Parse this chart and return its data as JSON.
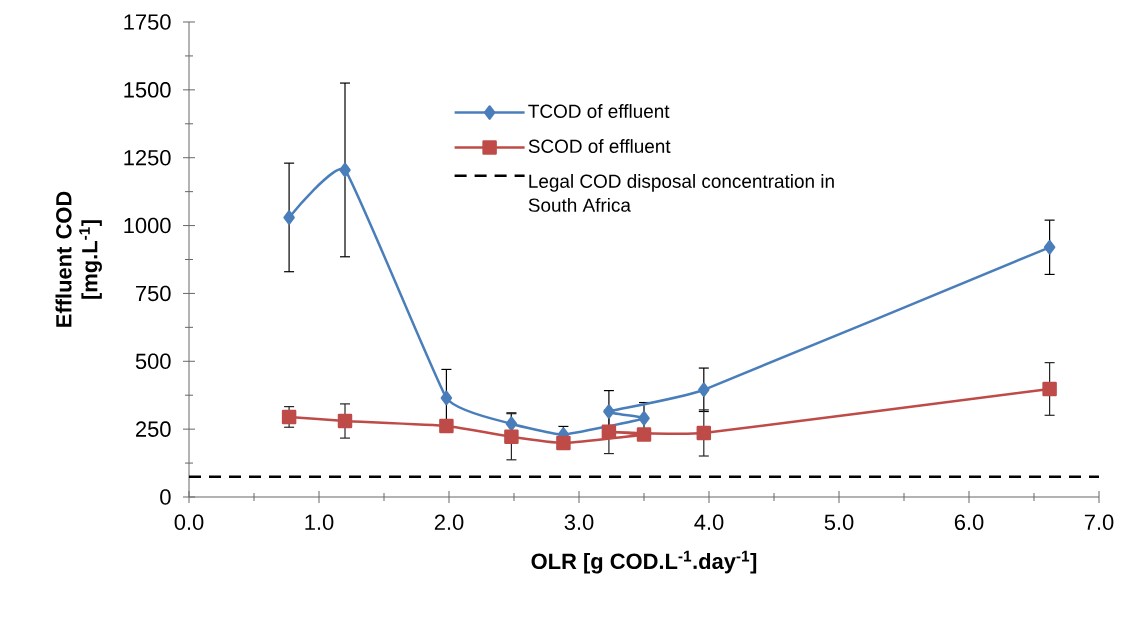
{
  "chart_data": {
    "type": "line",
    "xlabel": "OLR [g COD.L$^{-1}$.day$^{-1}$]",
    "ylabel": "Effluent COD [mg.L$^{-1}$]",
    "xlim": [
      0,
      7
    ],
    "xticks": [
      {
        "value": 0,
        "label": "0.0"
      },
      {
        "value": 1,
        "label": "1.0"
      },
      {
        "value": 2,
        "label": "2.0"
      },
      {
        "value": 3,
        "label": "3.0"
      },
      {
        "value": 4,
        "label": "4.0"
      },
      {
        "value": 5,
        "label": "5.0"
      },
      {
        "value": 6,
        "label": "6.0"
      },
      {
        "value": 7,
        "label": "7.0"
      }
    ],
    "ylim": [
      0,
      1750
    ],
    "yticks": [
      0,
      250,
      500,
      750,
      1000,
      1250,
      1500,
      1750
    ],
    "grid": false,
    "legend": "top",
    "series": [
      {
        "name": "TCOD of effluent",
        "color": "#4a7ebb",
        "marker": "diamond",
        "x": [
          0.77,
          1.2,
          1.98,
          2.48,
          2.88,
          3.5,
          3.23,
          3.96,
          6.62
        ],
        "values": [
          1030,
          1205,
          365,
          270,
          230,
          290,
          315,
          395,
          920
        ],
        "errors": [
          200,
          320,
          105,
          40,
          30,
          58,
          77,
          80,
          100
        ]
      },
      {
        "name": "SCOD of effluent",
        "color": "#be4b48",
        "marker": "square",
        "x": [
          0.77,
          1.2,
          1.98,
          2.48,
          2.88,
          3.5,
          3.23,
          3.96,
          6.62
        ],
        "values": [
          295,
          280,
          262,
          222,
          199,
          230,
          240,
          236,
          398
        ],
        "errors": [
          38,
          63,
          null,
          85,
          null,
          null,
          80,
          85,
          97
        ]
      }
    ],
    "ref_lines": [
      {
        "axis": "y",
        "value": 75,
        "label": "Legal COD disposal concentration in South Africa",
        "color": "#000000",
        "line_style": "dashed"
      }
    ]
  }
}
